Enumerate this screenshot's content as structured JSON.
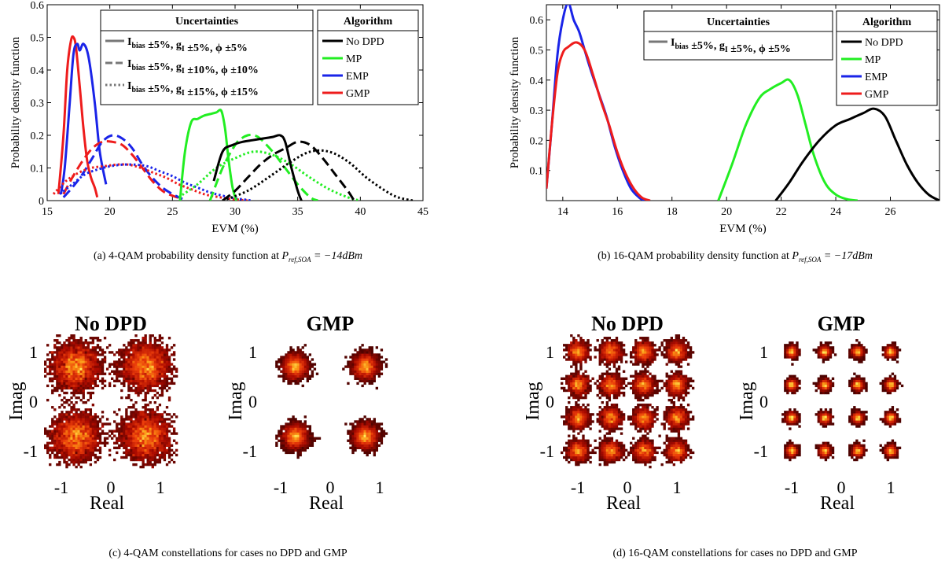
{
  "captions": {
    "a_text": "(a) 4-QAM probability density function at ",
    "a_math": "P",
    "a_sub": "ref,SOA",
    "a_eq": " = −14dBm",
    "b_text": "(b) 16-QAM probability density function at ",
    "b_math": "P",
    "b_sub": "ref,SOA",
    "b_eq": " = −17dBm",
    "c": "(c) 4-QAM constellations for cases no DPD and GMP",
    "d": "(d) 16-QAM constellations for cases no DPD and GMP"
  },
  "colors": {
    "no_dpd": "#000000",
    "mp": "#22ee22",
    "emp": "#1a24e8",
    "gmp": "#ee1c1c"
  },
  "chart_data": [
    {
      "id": "a",
      "type": "line",
      "xlabel": "EVM (%)",
      "ylabel": "Probability density function",
      "xlim": [
        15,
        45
      ],
      "ylim": [
        0,
        0.6
      ],
      "xticks": [
        15,
        20,
        25,
        30,
        35,
        40,
        45
      ],
      "yticks": [
        0,
        0.1,
        0.2,
        0.3,
        0.4,
        0.5,
        0.6
      ],
      "uncertainty_legend_title": "Uncertainties",
      "uncertainty_entries": [
        {
          "style": "solid",
          "label": "I_bias ±5%, g_I ±5%, ϕ ±5%"
        },
        {
          "style": "dashed",
          "label": "I_bias ±5%, g_I ±10%, ϕ ±10%"
        },
        {
          "style": "dotted",
          "label": "I_bias ±5%, g_I ±15%, ϕ ±15%"
        }
      ],
      "algorithm_legend_title": "Algorithm",
      "algorithms": [
        "No DPD",
        "MP",
        "EMP",
        "GMP"
      ],
      "series": [
        {
          "algorithm": "GMP",
          "style": "solid",
          "x": [
            15.9,
            16.3,
            16.6,
            16.9,
            17.1,
            17.3,
            17.6,
            17.9,
            18.2,
            18.5,
            18.8,
            19.0
          ],
          "y": [
            0.02,
            0.2,
            0.4,
            0.49,
            0.5,
            0.47,
            0.35,
            0.22,
            0.12,
            0.07,
            0.04,
            0.01
          ]
        },
        {
          "algorithm": "EMP",
          "style": "solid",
          "x": [
            16.1,
            16.4,
            16.8,
            17.1,
            17.4,
            17.6,
            17.9,
            18.3,
            18.8,
            19.2,
            19.7
          ],
          "y": [
            0.02,
            0.1,
            0.3,
            0.45,
            0.48,
            0.46,
            0.48,
            0.44,
            0.3,
            0.15,
            0.05
          ]
        },
        {
          "algorithm": "GMP",
          "style": "dashed",
          "x": [
            16.3,
            17,
            17.8,
            18.6,
            19.4,
            20.2,
            21,
            21.8,
            22.6,
            23.4,
            24.2,
            25,
            25.8
          ],
          "y": [
            0.02,
            0.07,
            0.12,
            0.16,
            0.18,
            0.18,
            0.17,
            0.14,
            0.1,
            0.06,
            0.03,
            0.015,
            0.005
          ]
        },
        {
          "algorithm": "EMP",
          "style": "dashed",
          "x": [
            16.3,
            17,
            17.8,
            18.6,
            19.4,
            20.2,
            21,
            21.8,
            22.6,
            23.4,
            24.2,
            25,
            25.8
          ],
          "y": [
            0.01,
            0.04,
            0.08,
            0.13,
            0.18,
            0.2,
            0.19,
            0.16,
            0.11,
            0.07,
            0.04,
            0.02,
            0.005
          ]
        },
        {
          "algorithm": "GMP",
          "style": "dotted",
          "x": [
            15.5,
            16.5,
            17.5,
            18.5,
            19.5,
            20.5,
            21.5,
            22.5,
            23.5,
            24.5,
            25.5,
            26.5,
            27.5,
            28.5,
            29.5,
            30.5,
            31
          ],
          "y": [
            0.02,
            0.06,
            0.085,
            0.1,
            0.105,
            0.11,
            0.11,
            0.1,
            0.085,
            0.07,
            0.05,
            0.035,
            0.02,
            0.012,
            0.006,
            0.002,
            0.0
          ]
        },
        {
          "algorithm": "EMP",
          "style": "dotted",
          "x": [
            16,
            17,
            18,
            19,
            20,
            21,
            22,
            23,
            24,
            25,
            26,
            27,
            28,
            29,
            30,
            31,
            31.3
          ],
          "y": [
            0.02,
            0.05,
            0.08,
            0.095,
            0.105,
            0.11,
            0.11,
            0.105,
            0.09,
            0.075,
            0.055,
            0.04,
            0.025,
            0.015,
            0.007,
            0.002,
            0.0
          ]
        },
        {
          "algorithm": "MP",
          "style": "solid",
          "x": [
            25.6,
            26.0,
            26.5,
            27.0,
            27.5,
            28.0,
            28.5,
            28.9,
            29.2,
            29.5,
            29.8,
            30.1
          ],
          "y": [
            0.0,
            0.15,
            0.24,
            0.25,
            0.26,
            0.265,
            0.27,
            0.275,
            0.22,
            0.12,
            0.04,
            0.0
          ]
        },
        {
          "algorithm": "MP",
          "style": "dashed",
          "x": [
            28.0,
            29.0,
            30.0,
            30.5,
            31.0,
            31.5,
            32.0,
            33.0,
            34.0,
            35.0,
            36.0,
            36.6
          ],
          "y": [
            0.0,
            0.1,
            0.17,
            0.19,
            0.2,
            0.2,
            0.19,
            0.15,
            0.1,
            0.05,
            0.01,
            0.0
          ]
        },
        {
          "algorithm": "MP",
          "style": "dotted",
          "x": [
            25.5,
            27,
            28.5,
            30,
            31.5,
            33,
            34.5,
            36,
            37.5,
            39,
            40
          ],
          "y": [
            0.01,
            0.05,
            0.1,
            0.13,
            0.15,
            0.14,
            0.11,
            0.07,
            0.035,
            0.01,
            0.0
          ]
        },
        {
          "algorithm": "No DPD",
          "style": "solid",
          "x": [
            28.3,
            29.0,
            29.8,
            30.6,
            31.4,
            32.2,
            33.0,
            33.6,
            34.0,
            34.5,
            35.0,
            35.3
          ],
          "y": [
            0.06,
            0.15,
            0.17,
            0.18,
            0.185,
            0.19,
            0.195,
            0.2,
            0.18,
            0.1,
            0.03,
            0.0
          ]
        },
        {
          "algorithm": "No DPD",
          "style": "dashed",
          "x": [
            29,
            30,
            31,
            32,
            33,
            34,
            35,
            36,
            37,
            38,
            39,
            39.5
          ],
          "y": [
            0.0,
            0.03,
            0.07,
            0.11,
            0.14,
            0.16,
            0.18,
            0.17,
            0.13,
            0.08,
            0.03,
            0.0
          ]
        },
        {
          "algorithm": "No DPD",
          "style": "dotted",
          "x": [
            29,
            31,
            33,
            34.5,
            36,
            37.5,
            39,
            40.5,
            42,
            43,
            44.2
          ],
          "y": [
            0.0,
            0.03,
            0.08,
            0.12,
            0.15,
            0.15,
            0.12,
            0.07,
            0.03,
            0.01,
            0.0
          ]
        }
      ]
    },
    {
      "id": "b",
      "type": "line",
      "xlabel": "EVM (%)",
      "ylabel": "Probability density function",
      "xlim": [
        13.4,
        27.8
      ],
      "ylim": [
        0,
        0.65
      ],
      "xticks": [
        14,
        16,
        18,
        20,
        22,
        24,
        26
      ],
      "yticks": [
        0.1,
        0.2,
        0.3,
        0.4,
        0.5,
        0.6
      ],
      "uncertainty_legend_title": "Uncertainties",
      "uncertainty_entries": [
        {
          "style": "solid",
          "label": "I_bias ±5%, g_I ±5%, ϕ ±5%"
        }
      ],
      "algorithm_legend_title": "Algorithm",
      "algorithms": [
        "No DPD",
        "MP",
        "EMP",
        "GMP"
      ],
      "series": [
        {
          "algorithm": "EMP",
          "style": "solid",
          "x": [
            13.4,
            13.6,
            13.8,
            14.0,
            14.2,
            14.4,
            14.6,
            14.8,
            15.0,
            15.3,
            15.6,
            15.9,
            16.2,
            16.5,
            16.8,
            17.0
          ],
          "y": [
            0.04,
            0.25,
            0.48,
            0.6,
            0.655,
            0.6,
            0.56,
            0.5,
            0.44,
            0.36,
            0.28,
            0.18,
            0.1,
            0.04,
            0.01,
            0.0
          ]
        },
        {
          "algorithm": "GMP",
          "style": "solid",
          "x": [
            13.4,
            13.6,
            13.8,
            14.0,
            14.2,
            14.5,
            14.8,
            15.1,
            15.4,
            15.7,
            16.0,
            16.3,
            16.6,
            16.9,
            17.2
          ],
          "y": [
            0.04,
            0.25,
            0.42,
            0.49,
            0.51,
            0.525,
            0.5,
            0.42,
            0.33,
            0.25,
            0.16,
            0.09,
            0.04,
            0.01,
            0.0
          ]
        },
        {
          "algorithm": "MP",
          "style": "solid",
          "x": [
            19.7,
            20.2,
            20.7,
            21.2,
            21.6,
            22.0,
            22.3,
            22.6,
            22.9,
            23.2,
            23.6,
            24.0,
            24.4,
            24.8
          ],
          "y": [
            0.0,
            0.12,
            0.25,
            0.34,
            0.37,
            0.39,
            0.4,
            0.35,
            0.25,
            0.15,
            0.06,
            0.02,
            0.005,
            0.0
          ]
        },
        {
          "algorithm": "No DPD",
          "style": "solid",
          "x": [
            21.8,
            22.3,
            22.8,
            23.4,
            24.0,
            24.5,
            25.0,
            25.4,
            25.8,
            26.2,
            26.6,
            27.0,
            27.4,
            27.8
          ],
          "y": [
            0.0,
            0.06,
            0.13,
            0.2,
            0.25,
            0.27,
            0.29,
            0.305,
            0.28,
            0.2,
            0.12,
            0.06,
            0.02,
            0.0
          ]
        }
      ]
    },
    {
      "id": "c",
      "type": "heatmap",
      "xlabel": "Real",
      "ylabel": "Imag",
      "xticks": [
        -1,
        0,
        1
      ],
      "yticks": [
        -1,
        0,
        1
      ],
      "subplots": [
        {
          "title": "No DPD",
          "order": 4,
          "spread": 0.23,
          "density": "wide"
        },
        {
          "title": "GMP",
          "order": 4,
          "spread": 0.12,
          "density": "tight"
        }
      ]
    },
    {
      "id": "d",
      "type": "heatmap",
      "xlabel": "Real",
      "ylabel": "Imag",
      "xticks": [
        -1,
        0,
        1
      ],
      "yticks": [
        -1,
        0,
        1
      ],
      "subplots": [
        {
          "title": "No DPD",
          "order": 16,
          "spread": 0.1,
          "density": "wide"
        },
        {
          "title": "GMP",
          "order": 16,
          "spread": 0.055,
          "density": "tight"
        }
      ]
    }
  ]
}
